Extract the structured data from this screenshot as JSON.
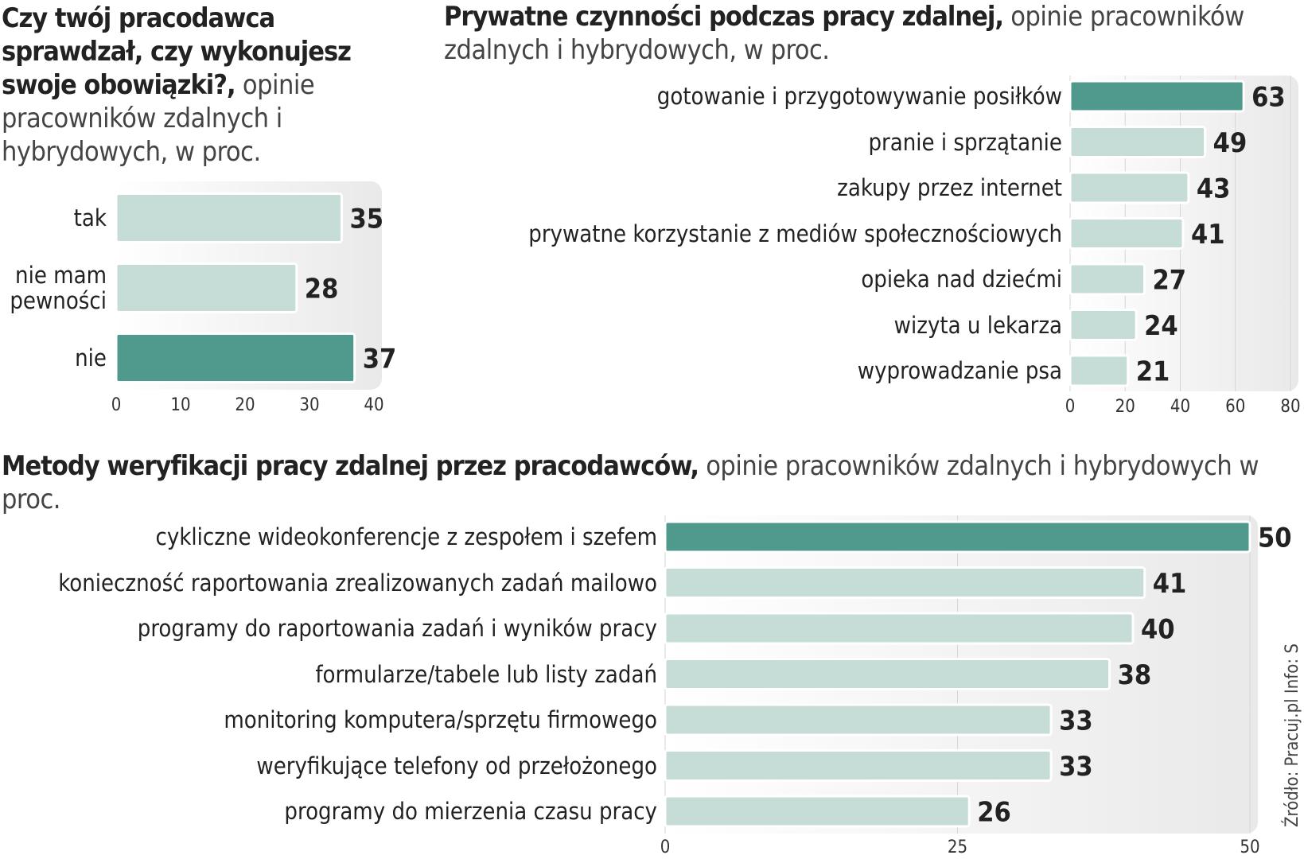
{
  "charts": [
    {
      "chart_data": {
        "type": "bar",
        "orientation": "horizontal",
        "title": "Czy twój pracodawca sprawdzał, czy wykonujesz swoje obowiązki?,",
        "subtitle": "opinie pracowników zdalnych i hybrydowych, w proc.",
        "categories": [
          "tak",
          "nie mam pewności",
          "nie"
        ],
        "values": [
          35,
          28,
          37
        ],
        "colors": [
          "#c5ddd6",
          "#c5ddd6",
          "#4f9a8d"
        ],
        "xlim": [
          0,
          40
        ],
        "xticks": [
          0,
          10,
          20,
          30,
          40
        ],
        "grid": false
      }
    },
    {
      "chart_data": {
        "type": "bar",
        "orientation": "horizontal",
        "title": "Prywatne czynności podczas pracy zdalnej,",
        "subtitle": "opinie pracowników zdalnych i hybrydowych, w proc.",
        "categories": [
          "gotowanie i przygotowywanie posiłków",
          "pranie i sprzątanie",
          "zakupy przez internet",
          "prywatne korzystanie z mediów społecznościowych",
          "opieka nad dziećmi",
          "wizyta u lekarza",
          "wyprowadzanie psa"
        ],
        "values": [
          63,
          49,
          43,
          41,
          27,
          24,
          21
        ],
        "colors": [
          "#4f9a8d",
          "#c5ddd6",
          "#c5ddd6",
          "#c5ddd6",
          "#c5ddd6",
          "#c5ddd6",
          "#c5ddd6"
        ],
        "xlim": [
          0,
          80
        ],
        "xticks": [
          0,
          20,
          40,
          60,
          80
        ],
        "grid": true
      }
    },
    {
      "chart_data": {
        "type": "bar",
        "orientation": "horizontal",
        "title": "Metody weryfikacji pracy zdalnej przez pracodawców,",
        "subtitle": "opinie pracowników zdalnych i hybrydowych w proc.",
        "categories": [
          "cykliczne wideokonferencje z zespołem i szefem",
          "konieczność raportowania zrealizowanych zadań mailowo",
          "programy do raportowania zadań i wyników pracy",
          "formularze/tabele lub listy zadań",
          "monitoring komputera/sprzętu firmowego",
          "weryfikujące telefony od przełożonego",
          "programy do mierzenia czasu pracy"
        ],
        "values": [
          50,
          41,
          40,
          38,
          33,
          33,
          26
        ],
        "colors": [
          "#4f9a8d",
          "#c5ddd6",
          "#c5ddd6",
          "#c5ddd6",
          "#c5ddd6",
          "#c5ddd6",
          "#c5ddd6"
        ],
        "xlim": [
          0,
          50
        ],
        "xticks": [
          0,
          25,
          50
        ],
        "grid": true
      }
    }
  ],
  "source": "Źródło: Pracuj.pl  Info: S"
}
